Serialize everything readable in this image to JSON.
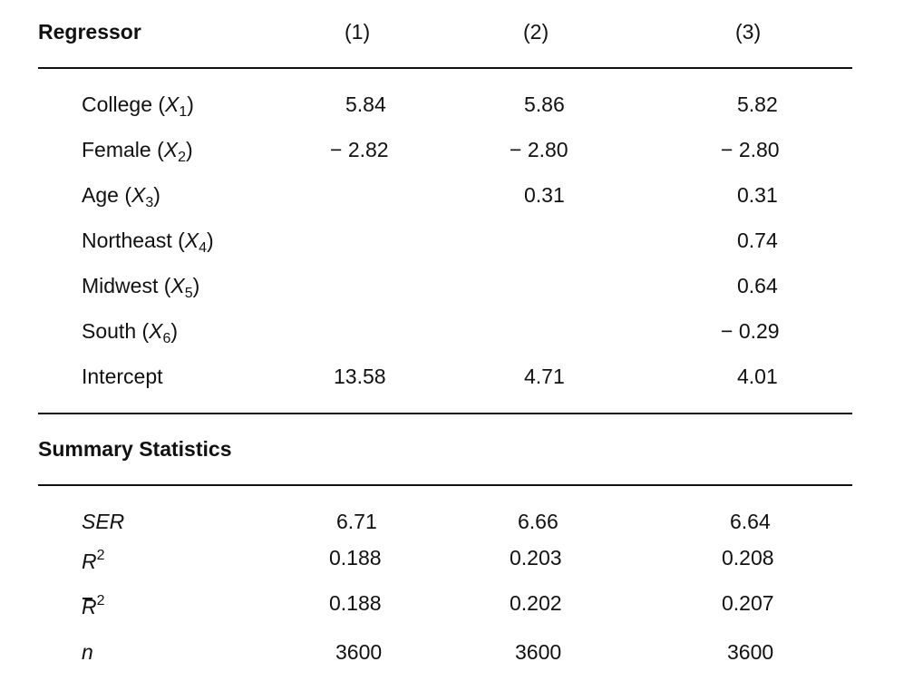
{
  "header": {
    "regressor": "Regressor",
    "cols": [
      "(1)",
      "(2)",
      "(3)"
    ]
  },
  "rows": [
    {
      "label": "College (",
      "var": "X",
      "sub": "1",
      "close": ")",
      "v1": "5.84",
      "v2": "5.86",
      "v3": "5.82"
    },
    {
      "label": "Female (",
      "var": "X",
      "sub": "2",
      "close": ")",
      "v1": "− 2.82",
      "v2": "− 2.80",
      "v3": "− 2.80"
    },
    {
      "label": "Age (",
      "var": "X",
      "sub": "3",
      "close": ")",
      "v1": "",
      "v2": "0.31",
      "v3": "0.31"
    },
    {
      "label": "Northeast (",
      "var": "X",
      "sub": "4",
      "close": ")",
      "v1": "",
      "v2": "",
      "v3": "0.74"
    },
    {
      "label": "Midwest (",
      "var": "X",
      "sub": "5",
      "close": ")",
      "v1": "",
      "v2": "",
      "v3": "0.64"
    },
    {
      "label": "South (",
      "var": "X",
      "sub": "6",
      "close": ")",
      "v1": "",
      "v2": "",
      "v3": "− 0.29"
    },
    {
      "label": "Intercept",
      "var": "",
      "sub": "",
      "close": "",
      "v1": "13.58",
      "v2": "4.71",
      "v3": "4.01"
    }
  ],
  "summary_title": "Summary Statistics",
  "summary": [
    {
      "label": "SER",
      "sup": "",
      "v1": "6.71",
      "v2": "6.66",
      "v3": "6.64"
    },
    {
      "label": "R",
      "sup": "2",
      "v1": "0.188",
      "v2": "0.203",
      "v3": "0.208"
    },
    {
      "label": "R",
      "sup": "2",
      "v1": "0.188",
      "v2": "0.202",
      "v3": "0.207"
    },
    {
      "label": "n",
      "sup": "",
      "v1": "3600",
      "v2": "3600",
      "v3": "3600"
    }
  ]
}
